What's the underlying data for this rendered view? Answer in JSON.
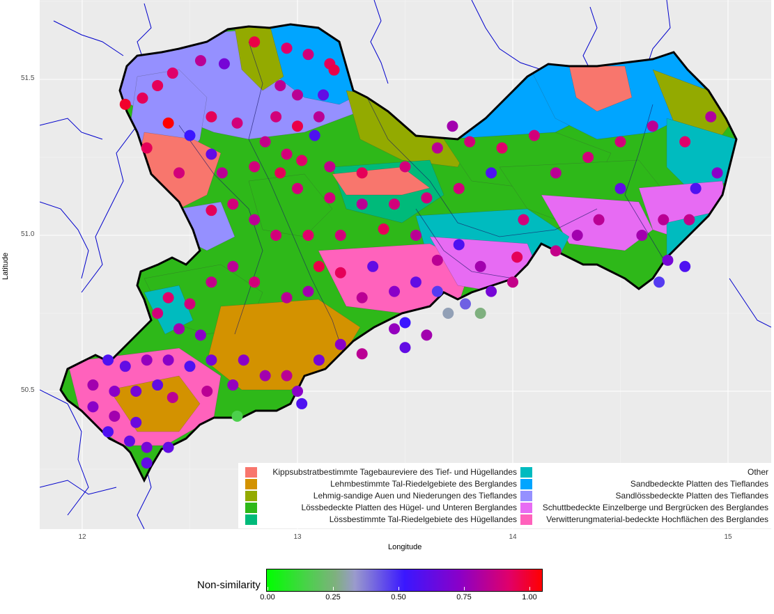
{
  "map": {
    "x_axis_title": "Longitude",
    "y_axis_title": "Latitude",
    "x_ticks": [
      "12",
      "13",
      "14",
      "15"
    ],
    "y_ticks": [
      "50.5",
      "51.0",
      "51.5"
    ],
    "background_color": "#ebebeb",
    "river_color": "#0000cc",
    "border_color": "#000000"
  },
  "legend": {
    "items": [
      {
        "label": "Kippsubstratbestimmte Tagebaureviere des Tief- und Hügellandes",
        "color": "#f8766d"
      },
      {
        "label": "Lehmbestimmte Tal-Riedelgebiete des Berglandes",
        "color": "#d39200"
      },
      {
        "label": "Lehmig-sandige Auen und Niederungen des Tieflandes",
        "color": "#93aa00"
      },
      {
        "label": "Lössbedeckte Platten des Hügel- und Unteren Berglandes",
        "color": "#2eb819"
      },
      {
        "label": "Lössbestimmte Tal-Riedelgebiete des Hügellandes",
        "color": "#00ba7a"
      },
      {
        "label": "Other",
        "color": "#00bbbf"
      },
      {
        "label": "Sandbedeckte Platten des Tieflandes",
        "color": "#00a5ff"
      },
      {
        "label": "Sandlössbedeckte Platten des Tieflandes",
        "color": "#9590ff"
      },
      {
        "label": "Schuttbedeckte Einzelberge und Bergrücken des Berglandes",
        "color": "#e76bf3"
      },
      {
        "label": "Verwitterungmaterial-bedeckte Hochflächen des Berglandes",
        "color": "#ff62bc"
      }
    ]
  },
  "colorbar": {
    "title": "Non-similarity",
    "ticks": [
      "0.00",
      "0.25",
      "0.50",
      "0.75",
      "1.00"
    ],
    "low_color": "#00ff00",
    "mid_color": "#0000ff",
    "high_color": "#ff0000"
  },
  "chart_data": {
    "type": "scatter",
    "xlabel": "Longitude",
    "ylabel": "Latitude",
    "xlim": [
      11.8,
      15.2
    ],
    "ylim": [
      50.15,
      51.75
    ],
    "color_scale": {
      "name": "Non-similarity",
      "range": [
        0,
        1
      ],
      "ticks": [
        0,
        0.25,
        0.5,
        0.75,
        1.0
      ]
    },
    "points": [
      {
        "x": 12.2,
        "y": 51.42,
        "v": 0.95
      },
      {
        "x": 12.28,
        "y": 51.44,
        "v": 0.9
      },
      {
        "x": 12.35,
        "y": 51.48,
        "v": 0.9
      },
      {
        "x": 12.42,
        "y": 51.52,
        "v": 0.88
      },
      {
        "x": 12.55,
        "y": 51.56,
        "v": 0.8
      },
      {
        "x": 12.66,
        "y": 51.55,
        "v": 0.65
      },
      {
        "x": 12.4,
        "y": 51.36,
        "v": 1.0
      },
      {
        "x": 12.6,
        "y": 51.38,
        "v": 0.9
      },
      {
        "x": 12.72,
        "y": 51.36,
        "v": 0.85
      },
      {
        "x": 12.5,
        "y": 51.32,
        "v": 0.5
      },
      {
        "x": 12.6,
        "y": 51.26,
        "v": 0.6
      },
      {
        "x": 12.3,
        "y": 51.28,
        "v": 0.9
      },
      {
        "x": 12.45,
        "y": 51.2,
        "v": 0.85
      },
      {
        "x": 12.65,
        "y": 51.2,
        "v": 0.8
      },
      {
        "x": 12.8,
        "y": 51.62,
        "v": 0.92
      },
      {
        "x": 12.95,
        "y": 51.6,
        "v": 0.88
      },
      {
        "x": 13.05,
        "y": 51.58,
        "v": 0.85
      },
      {
        "x": 13.15,
        "y": 51.55,
        "v": 0.9
      },
      {
        "x": 13.17,
        "y": 51.53,
        "v": 0.92
      },
      {
        "x": 12.92,
        "y": 51.48,
        "v": 0.8
      },
      {
        "x": 13.0,
        "y": 51.45,
        "v": 0.8
      },
      {
        "x": 13.12,
        "y": 51.45,
        "v": 0.6
      },
      {
        "x": 12.9,
        "y": 51.38,
        "v": 0.85
      },
      {
        "x": 13.0,
        "y": 51.35,
        "v": 0.92
      },
      {
        "x": 13.1,
        "y": 51.38,
        "v": 0.8
      },
      {
        "x": 13.08,
        "y": 51.32,
        "v": 0.55
      },
      {
        "x": 12.85,
        "y": 51.3,
        "v": 0.82
      },
      {
        "x": 12.95,
        "y": 51.26,
        "v": 0.85
      },
      {
        "x": 12.8,
        "y": 51.22,
        "v": 0.85
      },
      {
        "x": 12.92,
        "y": 51.2,
        "v": 0.9
      },
      {
        "x": 13.02,
        "y": 51.24,
        "v": 0.88
      },
      {
        "x": 13.15,
        "y": 51.22,
        "v": 0.82
      },
      {
        "x": 13.3,
        "y": 51.2,
        "v": 0.9
      },
      {
        "x": 13.5,
        "y": 51.22,
        "v": 0.85
      },
      {
        "x": 13.65,
        "y": 51.28,
        "v": 0.8
      },
      {
        "x": 13.8,
        "y": 51.3,
        "v": 0.85
      },
      {
        "x": 13.95,
        "y": 51.28,
        "v": 0.88
      },
      {
        "x": 14.1,
        "y": 51.32,
        "v": 0.85
      },
      {
        "x": 13.72,
        "y": 51.35,
        "v": 0.75
      },
      {
        "x": 13.9,
        "y": 51.2,
        "v": 0.55
      },
      {
        "x": 14.2,
        "y": 51.2,
        "v": 0.8
      },
      {
        "x": 14.35,
        "y": 51.25,
        "v": 0.85
      },
      {
        "x": 14.5,
        "y": 51.3,
        "v": 0.85
      },
      {
        "x": 14.5,
        "y": 51.15,
        "v": 0.6
      },
      {
        "x": 14.65,
        "y": 51.35,
        "v": 0.8
      },
      {
        "x": 14.8,
        "y": 51.3,
        "v": 0.88
      },
      {
        "x": 14.85,
        "y": 51.15,
        "v": 0.55
      },
      {
        "x": 14.95,
        "y": 51.2,
        "v": 0.7
      },
      {
        "x": 14.92,
        "y": 51.38,
        "v": 0.78
      },
      {
        "x": 14.82,
        "y": 51.05,
        "v": 0.82
      },
      {
        "x": 14.7,
        "y": 51.05,
        "v": 0.8
      },
      {
        "x": 14.6,
        "y": 51.0,
        "v": 0.75
      },
      {
        "x": 14.72,
        "y": 50.92,
        "v": 0.65
      },
      {
        "x": 14.8,
        "y": 50.9,
        "v": 0.55
      },
      {
        "x": 14.68,
        "y": 50.85,
        "v": 0.45
      },
      {
        "x": 14.4,
        "y": 51.05,
        "v": 0.8
      },
      {
        "x": 14.3,
        "y": 51.0,
        "v": 0.75
      },
      {
        "x": 14.2,
        "y": 50.95,
        "v": 0.82
      },
      {
        "x": 14.05,
        "y": 51.05,
        "v": 0.85
      },
      {
        "x": 14.02,
        "y": 50.93,
        "v": 0.9
      },
      {
        "x": 13.75,
        "y": 51.15,
        "v": 0.85
      },
      {
        "x": 13.6,
        "y": 51.12,
        "v": 0.85
      },
      {
        "x": 13.45,
        "y": 51.1,
        "v": 0.85
      },
      {
        "x": 13.3,
        "y": 51.1,
        "v": 0.8
      },
      {
        "x": 13.15,
        "y": 51.12,
        "v": 0.85
      },
      {
        "x": 13.0,
        "y": 51.15,
        "v": 0.85
      },
      {
        "x": 12.8,
        "y": 51.05,
        "v": 0.8
      },
      {
        "x": 12.7,
        "y": 51.1,
        "v": 0.85
      },
      {
        "x": 12.6,
        "y": 51.08,
        "v": 0.9
      },
      {
        "x": 12.9,
        "y": 51.0,
        "v": 0.85
      },
      {
        "x": 13.05,
        "y": 51.0,
        "v": 0.88
      },
      {
        "x": 13.2,
        "y": 51.0,
        "v": 0.85
      },
      {
        "x": 13.4,
        "y": 51.02,
        "v": 0.9
      },
      {
        "x": 13.55,
        "y": 51.0,
        "v": 0.8
      },
      {
        "x": 13.65,
        "y": 50.92,
        "v": 0.8
      },
      {
        "x": 13.75,
        "y": 50.97,
        "v": 0.55
      },
      {
        "x": 13.85,
        "y": 50.9,
        "v": 0.75
      },
      {
        "x": 13.55,
        "y": 50.85,
        "v": 0.6
      },
      {
        "x": 13.35,
        "y": 50.9,
        "v": 0.6
      },
      {
        "x": 13.3,
        "y": 50.8,
        "v": 0.8
      },
      {
        "x": 13.2,
        "y": 50.88,
        "v": 0.9
      },
      {
        "x": 13.1,
        "y": 50.9,
        "v": 0.92
      },
      {
        "x": 13.05,
        "y": 50.82,
        "v": 0.75
      },
      {
        "x": 12.95,
        "y": 50.8,
        "v": 0.8
      },
      {
        "x": 12.8,
        "y": 50.85,
        "v": 0.85
      },
      {
        "x": 12.7,
        "y": 50.9,
        "v": 0.8
      },
      {
        "x": 12.6,
        "y": 50.85,
        "v": 0.82
      },
      {
        "x": 12.5,
        "y": 50.78,
        "v": 0.85
      },
      {
        "x": 12.4,
        "y": 50.8,
        "v": 0.88
      },
      {
        "x": 12.35,
        "y": 50.75,
        "v": 0.85
      },
      {
        "x": 12.45,
        "y": 50.7,
        "v": 0.75
      },
      {
        "x": 12.55,
        "y": 50.68,
        "v": 0.7
      },
      {
        "x": 12.6,
        "y": 50.6,
        "v": 0.65
      },
      {
        "x": 12.5,
        "y": 50.58,
        "v": 0.55
      },
      {
        "x": 12.4,
        "y": 50.6,
        "v": 0.7
      },
      {
        "x": 12.3,
        "y": 50.6,
        "v": 0.72
      },
      {
        "x": 12.2,
        "y": 50.58,
        "v": 0.6
      },
      {
        "x": 12.12,
        "y": 50.6,
        "v": 0.55
      },
      {
        "x": 12.05,
        "y": 50.52,
        "v": 0.75
      },
      {
        "x": 12.15,
        "y": 50.5,
        "v": 0.7
      },
      {
        "x": 12.25,
        "y": 50.5,
        "v": 0.65
      },
      {
        "x": 12.35,
        "y": 50.52,
        "v": 0.6
      },
      {
        "x": 12.42,
        "y": 50.48,
        "v": 0.8
      },
      {
        "x": 12.05,
        "y": 50.45,
        "v": 0.7
      },
      {
        "x": 12.15,
        "y": 50.42,
        "v": 0.75
      },
      {
        "x": 12.25,
        "y": 50.4,
        "v": 0.62
      },
      {
        "x": 12.12,
        "y": 50.37,
        "v": 0.55
      },
      {
        "x": 12.22,
        "y": 50.34,
        "v": 0.6
      },
      {
        "x": 12.3,
        "y": 50.32,
        "v": 0.65
      },
      {
        "x": 12.4,
        "y": 50.32,
        "v": 0.6
      },
      {
        "x": 12.3,
        "y": 50.27,
        "v": 0.6
      },
      {
        "x": 12.75,
        "y": 50.6,
        "v": 0.7
      },
      {
        "x": 12.85,
        "y": 50.55,
        "v": 0.75
      },
      {
        "x": 12.95,
        "y": 50.55,
        "v": 0.8
      },
      {
        "x": 13.0,
        "y": 50.5,
        "v": 0.7
      },
      {
        "x": 13.02,
        "y": 50.46,
        "v": 0.55
      },
      {
        "x": 12.7,
        "y": 50.52,
        "v": 0.72
      },
      {
        "x": 12.58,
        "y": 50.5,
        "v": 0.8
      },
      {
        "x": 12.72,
        "y": 50.42,
        "v": 0.15
      },
      {
        "x": 13.1,
        "y": 50.6,
        "v": 0.65
      },
      {
        "x": 13.2,
        "y": 50.65,
        "v": 0.7
      },
      {
        "x": 13.3,
        "y": 50.62,
        "v": 0.8
      },
      {
        "x": 13.45,
        "y": 50.7,
        "v": 0.72
      },
      {
        "x": 13.6,
        "y": 50.68,
        "v": 0.75
      },
      {
        "x": 13.5,
        "y": 50.72,
        "v": 0.5
      },
      {
        "x": 13.7,
        "y": 50.75,
        "v": 0.3
      },
      {
        "x": 13.65,
        "y": 50.82,
        "v": 0.45
      },
      {
        "x": 13.78,
        "y": 50.78,
        "v": 0.4
      },
      {
        "x": 13.85,
        "y": 50.75,
        "v": 0.25
      },
      {
        "x": 13.9,
        "y": 50.82,
        "v": 0.65
      },
      {
        "x": 14.0,
        "y": 50.85,
        "v": 0.82
      },
      {
        "x": 13.45,
        "y": 50.82,
        "v": 0.7
      },
      {
        "x": 13.5,
        "y": 50.64,
        "v": 0.6
      }
    ]
  }
}
